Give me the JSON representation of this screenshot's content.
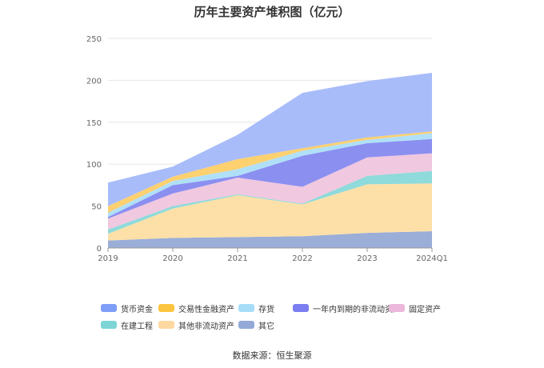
{
  "chart_data": {
    "type": "area",
    "title": "历年主要资产堆积图（亿元）",
    "stacked": true,
    "categories": [
      "2019",
      "2020",
      "2021",
      "2022",
      "2023",
      "2024Q1"
    ],
    "ylim": [
      0,
      250
    ],
    "yticks": [
      0,
      50,
      100,
      150,
      200,
      250
    ],
    "xlabel": "",
    "ylabel": "",
    "grid": true,
    "legend_position": "bottom",
    "series": [
      {
        "name": "其它",
        "color": "#9aaed8",
        "values": [
          9,
          12,
          13,
          14,
          18,
          20
        ]
      },
      {
        "name": "其他非流动资产",
        "color": "#fde0a8",
        "values": [
          8,
          35,
          50,
          38,
          58,
          57
        ]
      },
      {
        "name": "在建工程",
        "color": "#8fdada",
        "values": [
          5,
          3,
          1,
          1,
          10,
          15
        ]
      },
      {
        "name": "固定资产",
        "color": "#f0c8e0",
        "values": [
          13,
          15,
          20,
          20,
          22,
          21
        ]
      },
      {
        "name": "一年内到期的非流动资产",
        "color": "#8b8ff0",
        "values": [
          2,
          10,
          2,
          37,
          17,
          17
        ]
      },
      {
        "name": "存货",
        "color": "#b0e0f8",
        "values": [
          5,
          5,
          8,
          6,
          4,
          7
        ]
      },
      {
        "name": "交易性金融资产",
        "color": "#fdd070",
        "values": [
          8,
          5,
          12,
          3,
          3,
          2
        ]
      },
      {
        "name": "货币资金",
        "color": "#a8bcfa",
        "values": [
          28,
          12,
          29,
          66,
          67,
          70
        ]
      }
    ],
    "legend_order": [
      "货币资金",
      "交易性金融资产",
      "存货",
      "一年内到期的非流动资产",
      "固定资产",
      "在建工程",
      "其他非流动资产",
      "其它"
    ],
    "legend_colors": {
      "货币资金": "#7e9ef7",
      "交易性金融资产": "#fcc440",
      "存货": "#a8ddf8",
      "一年内到期的非流动资产": "#7a7ef0",
      "固定资产": "#ecb8dc",
      "在建工程": "#7dd5d5",
      "其他非流动资产": "#fdd9a0",
      "其它": "#93a9d8"
    }
  },
  "legend_labels": [
    "货币资金",
    "交易性金融资产",
    "存货",
    "一年内到期的非流动资产",
    "固定资产",
    "在建工程",
    "其他非流动资产",
    "其它"
  ],
  "footer": {
    "source": "数据来源：恒生聚源"
  }
}
